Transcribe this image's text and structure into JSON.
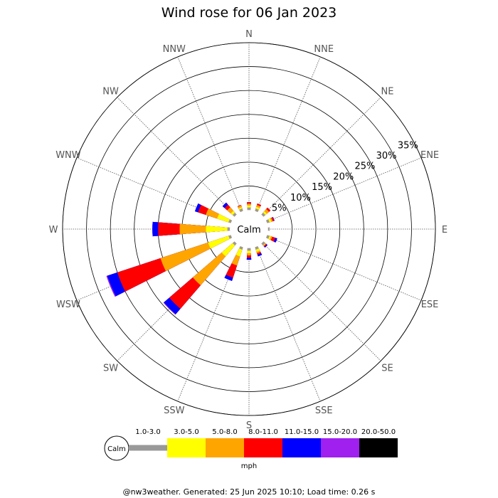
{
  "title": "Wind rose for 06 Jan 2023",
  "footer": "@nw3weather. Generated: 25 Jun 2025 10:10; Load time: 0.26 s",
  "calm_label": "Calm",
  "unit_label": "mph",
  "chart_data": {
    "type": "wind-rose",
    "title": "Wind rose for 06 Jan 2023",
    "directions": [
      "N",
      "NNE",
      "NE",
      "ENE",
      "E",
      "ESE",
      "SE",
      "SSE",
      "S",
      "SSW",
      "SW",
      "WSW",
      "W",
      "WNW",
      "NW",
      "NNW"
    ],
    "radial_ticks": [
      "5%",
      "10%",
      "15%",
      "20%",
      "25%",
      "30%",
      "35%"
    ],
    "radial_tick_values": [
      5,
      10,
      15,
      20,
      25,
      30,
      35
    ],
    "speed_bins": [
      {
        "label": "1.0-3.0",
        "color": "#999999"
      },
      {
        "label": "3.0-5.0",
        "color": "#ffff00"
      },
      {
        "label": "5.0-8.0",
        "color": "#ffa500"
      },
      {
        "label": "8.0-11.0",
        "color": "#ff0000"
      },
      {
        "label": "11.0-15.0",
        "color": "#0000ff"
      },
      {
        "label": "15.0-20.0",
        "color": "#a020f0"
      },
      {
        "label": "20.0-50.0",
        "color": "#000000"
      }
    ],
    "cumulative_percent": {
      "N": [
        0.5,
        0.9,
        1.3,
        1.6,
        1.6,
        1.6,
        1.6
      ],
      "NNE": [
        0.5,
        0.9,
        1.3,
        1.6,
        1.6,
        1.6,
        1.6
      ],
      "NE": [
        0.5,
        0.9,
        1.5,
        1.9,
        1.9,
        1.9,
        1.9
      ],
      "ENE": [
        0.5,
        0.9,
        1.2,
        1.5,
        1.6,
        1.6,
        1.6
      ],
      "E": [
        0.3,
        0.3,
        0.3,
        0.3,
        0.3,
        0.3,
        0.3
      ],
      "ESE": [
        0.5,
        0.8,
        1.1,
        1.8,
        2.2,
        2.2,
        2.2
      ],
      "SE": [
        0.5,
        0.6,
        0.7,
        0.9,
        1.1,
        1.1,
        1.1
      ],
      "SSE": [
        0.5,
        1.0,
        1.3,
        1.6,
        2.0,
        2.0,
        2.0
      ],
      "S": [
        0.5,
        1.0,
        1.5,
        2.0,
        2.4,
        2.4,
        2.4
      ],
      "SSW": [
        0.5,
        2.0,
        4.0,
        6.7,
        7.4,
        7.4,
        7.4
      ],
      "SW": [
        0.5,
        3.5,
        11.5,
        18.0,
        19.5,
        19.6,
        19.6
      ],
      "WSW": [
        0.5,
        5.0,
        15.5,
        25.0,
        27.2,
        27.4,
        27.4
      ],
      "W": [
        0.5,
        5.0,
        10.5,
        15.0,
        16.2,
        16.2,
        16.2
      ],
      "WNW": [
        0.5,
        3.0,
        5.5,
        7.2,
        7.9,
        7.9,
        7.9
      ],
      "NW": [
        0.5,
        1.0,
        2.0,
        2.7,
        3.3,
        3.3,
        3.3
      ],
      "NNW": [
        0.5,
        0.8,
        1.2,
        1.3,
        1.3,
        1.3,
        1.3
      ]
    },
    "calm_percent": 0.3,
    "grid": true
  }
}
